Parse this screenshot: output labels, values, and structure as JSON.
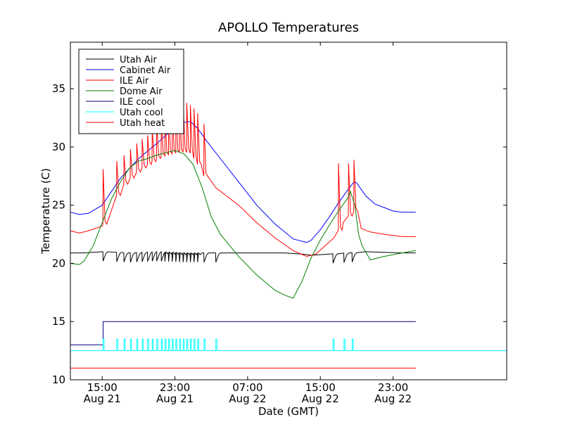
{
  "chart_data": {
    "type": "line",
    "title": "APOLLO Temperatures",
    "xlabel": "Date (GMT)",
    "ylabel": "Temperature (C)",
    "xlim": [
      11.5,
      59.5
    ],
    "ylim": [
      10,
      39
    ],
    "x_unit": "hours since Aug 21 00:00 GMT",
    "grid": false,
    "legend_position": "top-left",
    "x_ticks": [
      {
        "value": 15,
        "time": "15:00",
        "date": "Aug 21"
      },
      {
        "value": 23,
        "time": "23:00",
        "date": "Aug 21"
      },
      {
        "value": 31,
        "time": "07:00",
        "date": "Aug 22"
      },
      {
        "value": 39,
        "time": "15:00",
        "date": "Aug 22"
      },
      {
        "value": 47,
        "time": "23:00",
        "date": "Aug 22"
      }
    ],
    "y_ticks": [
      10,
      15,
      20,
      25,
      30,
      35
    ],
    "series": [
      {
        "name": "Utah Air",
        "color": "#000000",
        "x": [
          11.5,
          13,
          15,
          18,
          21,
          24,
          26,
          29,
          32,
          35,
          37,
          38,
          40,
          44,
          48,
          49.5
        ],
        "y": [
          20.9,
          20.9,
          21.0,
          20.9,
          21.0,
          20.9,
          20.9,
          20.9,
          20.9,
          20.9,
          20.8,
          20.7,
          20.8,
          21.0,
          20.9,
          20.9
        ],
        "dips": {
          "x": [
            15.1,
            16.6,
            17.4,
            18.1,
            18.8,
            19.4,
            20.0,
            20.5,
            21.0,
            21.5,
            21.9,
            22.3,
            22.7,
            23.1,
            23.5,
            23.9,
            24.3,
            24.7,
            25.1,
            25.5,
            26.2,
            27.5,
            40.4,
            41.6,
            42.5
          ],
          "depth": 0.8
        }
      },
      {
        "name": "Cabinet Air",
        "color": "#0000ff",
        "x": [
          11.5,
          12.5,
          13.5,
          15,
          17,
          19,
          21,
          22,
          23,
          24,
          24.7,
          25.5,
          26.5,
          28,
          30,
          32,
          34,
          36,
          37.5,
          38,
          39,
          40,
          41,
          42,
          42.7,
          43,
          44,
          45,
          46,
          47,
          48,
          49.5
        ],
        "y": [
          24.4,
          24.2,
          24.3,
          25.0,
          27.3,
          29.0,
          30.3,
          31.0,
          31.6,
          32.1,
          32.2,
          31.6,
          30.5,
          29.0,
          27.0,
          25.0,
          23.4,
          22.1,
          21.8,
          22.0,
          22.9,
          24.0,
          25.2,
          26.3,
          27.0,
          26.9,
          25.8,
          25.1,
          24.8,
          24.5,
          24.4,
          24.4
        ]
      },
      {
        "name": "ILE Air",
        "color": "#ff0000",
        "x": [
          11.5,
          12.5,
          13.5,
          15,
          17,
          19,
          21,
          22,
          23,
          24,
          24.7,
          25.5,
          26.2,
          27.5,
          30,
          32,
          34,
          36,
          37.5,
          38.5,
          39.5,
          40.5,
          41.5,
          42,
          42.7,
          43.5,
          44.5,
          46,
          48,
          49.5
        ],
        "y": [
          22.8,
          22.6,
          22.8,
          23.2,
          26.5,
          28.0,
          29.0,
          29.3,
          29.5,
          29.6,
          29.5,
          28.5,
          27.5,
          26.5,
          25.0,
          23.5,
          22.2,
          21.1,
          20.6,
          20.8,
          21.5,
          22.2,
          23.5,
          24.0,
          24.5,
          23.0,
          22.7,
          22.5,
          22.3,
          22.3
        ],
        "spikes": {
          "x": [
            15.1,
            16.6,
            17.4,
            18.1,
            18.8,
            19.4,
            20.0,
            20.5,
            21.0,
            21.5,
            21.9,
            22.3,
            22.7,
            23.1,
            23.5,
            23.9,
            24.3,
            24.7,
            25.1,
            25.5,
            26.2,
            41.0,
            42.1,
            42.7
          ],
          "peak": [
            28.1,
            28.8,
            29.3,
            29.8,
            30.3,
            30.7,
            31.0,
            31.5,
            31.9,
            32.3,
            32.7,
            33.0,
            33.3,
            33.5,
            33.7,
            33.8,
            33.8,
            33.6,
            33.3,
            32.9,
            32.0,
            28.6,
            28.6,
            28.9
          ]
        }
      },
      {
        "name": "Dome Air",
        "color": "#008000",
        "x": [
          11.5,
          12.5,
          13,
          14,
          15,
          16,
          17,
          18,
          19,
          20,
          21,
          22,
          23,
          24,
          25,
          26,
          27,
          28,
          30,
          32,
          34,
          35,
          36,
          37,
          38,
          39,
          40,
          41,
          42,
          42.3,
          42.8,
          43.2,
          43.6,
          44.5,
          46,
          48,
          49.5
        ],
        "y": [
          20.0,
          19.9,
          20.2,
          21.5,
          23.5,
          25.5,
          27.0,
          28.2,
          28.8,
          29.0,
          29.3,
          29.5,
          29.7,
          29.4,
          28.5,
          26.5,
          24.0,
          22.5,
          20.6,
          19.0,
          17.7,
          17.3,
          17.0,
          18.5,
          20.5,
          22.0,
          23.3,
          24.5,
          25.6,
          26.2,
          25.0,
          22.5,
          21.5,
          20.3,
          20.6,
          20.9,
          21.1
        ]
      },
      {
        "name": "ILE cool",
        "color": "#000080",
        "x": [
          11.5,
          15.1,
          15.1,
          49.5
        ],
        "y": [
          13.0,
          13.0,
          15.0,
          15.0
        ]
      },
      {
        "name": "Utah cool",
        "color": "#00ffff",
        "x": [
          11.5,
          49.5
        ],
        "y": [
          12.5,
          12.5
        ],
        "pulses": {
          "x": [
            15.1,
            16.6,
            17.4,
            18.1,
            18.8,
            19.4,
            20.0,
            20.5,
            21.0,
            21.5,
            21.9,
            22.3,
            22.7,
            23.1,
            23.5,
            23.9,
            24.3,
            24.7,
            25.1,
            25.5,
            26.2,
            27.5,
            40.4,
            41.6,
            42.5
          ],
          "height": 13.5,
          "width": 0.12
        }
      },
      {
        "name": "Utah heat",
        "color": "#ff0000",
        "x": [
          11.5,
          49.5
        ],
        "y": [
          11.0,
          11.0
        ]
      }
    ]
  }
}
